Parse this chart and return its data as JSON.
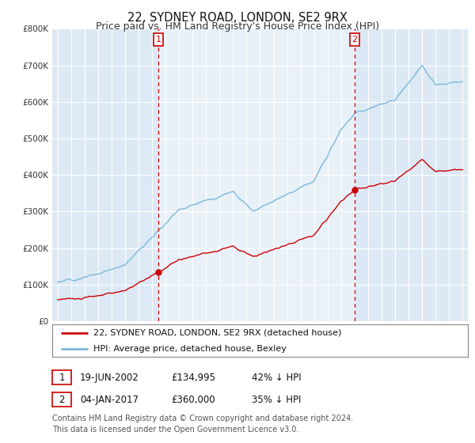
{
  "title": "22, SYDNEY ROAD, LONDON, SE2 9RX",
  "subtitle": "Price paid vs. HM Land Registry's House Price Index (HPI)",
  "background_color": "#ffffff",
  "plot_bg_color": "#dce9f5",
  "ylim": [
    0,
    800000
  ],
  "yticks": [
    0,
    100000,
    200000,
    300000,
    400000,
    500000,
    600000,
    700000,
    800000
  ],
  "ytick_labels": [
    "£0",
    "£100K",
    "£200K",
    "£300K",
    "£400K",
    "£500K",
    "£600K",
    "£700K",
    "£800K"
  ],
  "xlim_left": 1994.6,
  "xlim_right": 2025.4,
  "hpi_color": "#7ab8d9",
  "price_color": "#cc0000",
  "shade_color": "#c8dff0",
  "marker_color": "#cc0000",
  "purchase1_date": 2002.47,
  "purchase1_price": 134995,
  "purchase2_date": 2017.02,
  "purchase2_price": 360000,
  "legend_address": "22, SYDNEY ROAD, LONDON, SE2 9RX (detached house)",
  "legend_hpi": "HPI: Average price, detached house, Bexley",
  "annotation1_date": "19-JUN-2002",
  "annotation1_price": "£134,995",
  "annotation1_hpi": "42% ↓ HPI",
  "annotation2_date": "04-JAN-2017",
  "annotation2_price": "£360,000",
  "annotation2_hpi": "35% ↓ HPI",
  "footnote": "Contains HM Land Registry data © Crown copyright and database right 2024.\nThis data is licensed under the Open Government Licence v3.0.",
  "title_fontsize": 10.5,
  "subtitle_fontsize": 9,
  "tick_fontsize": 7.5,
  "legend_fontsize": 8,
  "annotation_fontsize": 8.5,
  "footnote_fontsize": 7
}
